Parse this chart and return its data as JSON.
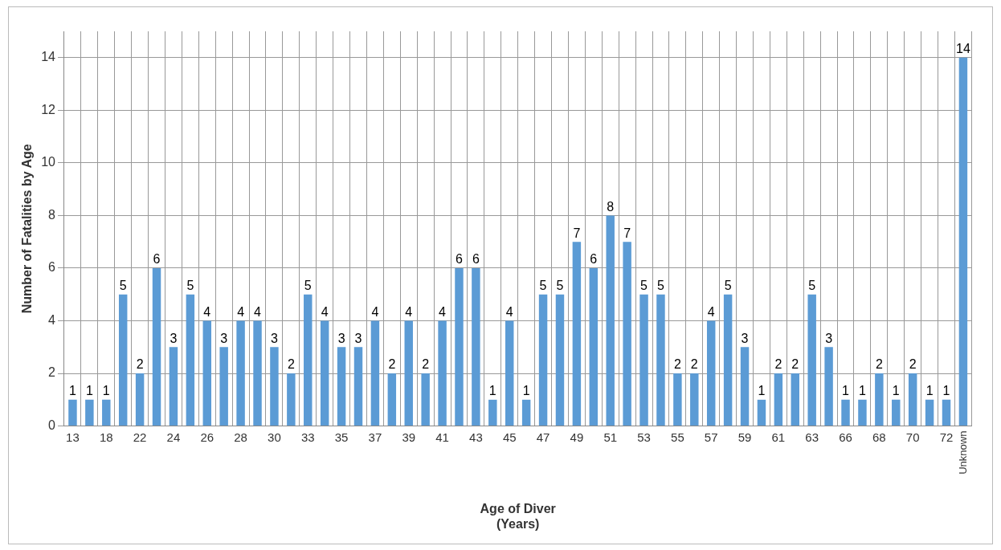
{
  "chart_data": {
    "type": "bar",
    "xlabel": "Age of Diver\n(Years)",
    "ylabel": "Number of Fatalities by Age",
    "categories": [
      "13",
      null,
      "18",
      null,
      "22",
      null,
      "24",
      null,
      "26",
      null,
      "28",
      null,
      "30",
      null,
      "33",
      null,
      "35",
      null,
      "37",
      null,
      "39",
      null,
      "41",
      null,
      "43",
      null,
      "45",
      null,
      "47",
      null,
      "49",
      null,
      "51",
      null,
      "53",
      null,
      "55",
      null,
      "57",
      null,
      "59",
      null,
      "61",
      null,
      "63",
      null,
      "66",
      null,
      "68",
      null,
      "70",
      null,
      "72",
      "Unknown"
    ],
    "values": [
      1,
      1,
      1,
      5,
      2,
      6,
      3,
      5,
      4,
      3,
      4,
      4,
      3,
      2,
      5,
      4,
      3,
      3,
      4,
      2,
      4,
      2,
      4,
      6,
      6,
      1,
      4,
      1,
      5,
      5,
      7,
      6,
      8,
      7,
      5,
      5,
      2,
      2,
      4,
      5,
      3,
      1,
      2,
      2,
      5,
      3,
      1,
      1,
      2,
      1,
      2,
      1,
      1,
      14
    ],
    "color": "#5b9bd5",
    "ylim": [
      0,
      15
    ],
    "yticks": [
      0,
      2,
      4,
      6,
      8,
      10,
      12,
      14
    ],
    "grid": true,
    "data_labels": true
  }
}
